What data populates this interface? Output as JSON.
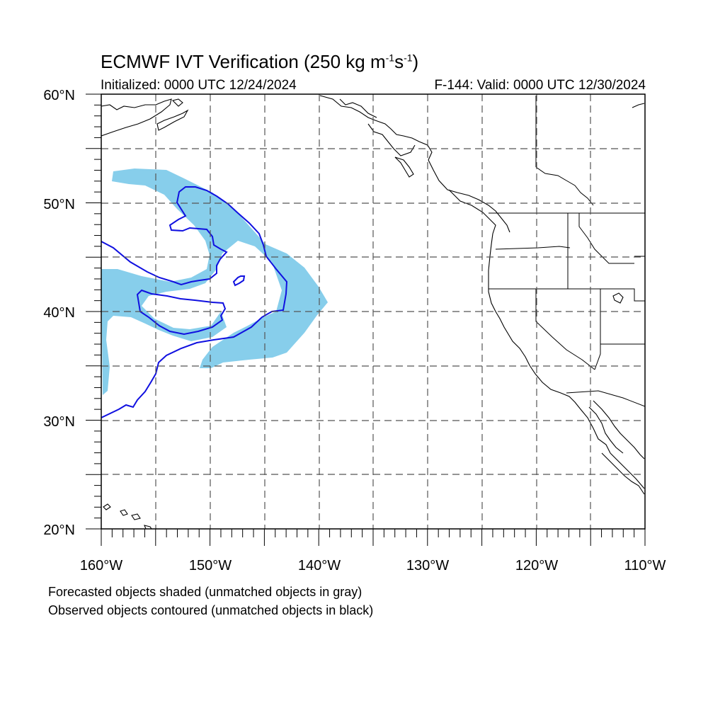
{
  "title": {
    "prefix": "ECMWF IVT Verification (250 kg m",
    "exp1": "-1",
    "mid": "s",
    "exp2": "-1",
    "suffix": ")"
  },
  "initialized": "Initialized: 0000 UTC 12/24/2024",
  "valid": "F-144: Valid: 0000 UTC 12/30/2024",
  "legend": {
    "forecast": "Forecasted objects shaded (unmatched objects in gray)",
    "observed": "Observed objects contoured (unmatched objects in black)"
  },
  "colors": {
    "forecast_fill": "#87ceeb",
    "observed_contour": "#1010e0",
    "coastline": "#000000",
    "grid": "#555555"
  },
  "map": {
    "lon_range": [
      -160,
      -110
    ],
    "lat_range": [
      20,
      60
    ],
    "lat_labels": [
      {
        "lat": 60,
        "text": "60°N"
      },
      {
        "lat": 50,
        "text": "50°N"
      },
      {
        "lat": 40,
        "text": "40°N"
      },
      {
        "lat": 30,
        "text": "30°N"
      },
      {
        "lat": 20,
        "text": "20°N"
      }
    ],
    "lon_labels": [
      {
        "lon": -160,
        "text": "160°W"
      },
      {
        "lon": -150,
        "text": "150°W"
      },
      {
        "lon": -140,
        "text": "140°W"
      },
      {
        "lon": -130,
        "text": "130°W"
      },
      {
        "lon": -120,
        "text": "120°W"
      },
      {
        "lon": -110,
        "text": "110°W"
      }
    ],
    "grid_lats": [
      25,
      30,
      35,
      40,
      45,
      50,
      55
    ],
    "grid_lons": [
      -155,
      -150,
      -145,
      -140,
      -135,
      -130,
      -125,
      -120,
      -115
    ]
  }
}
